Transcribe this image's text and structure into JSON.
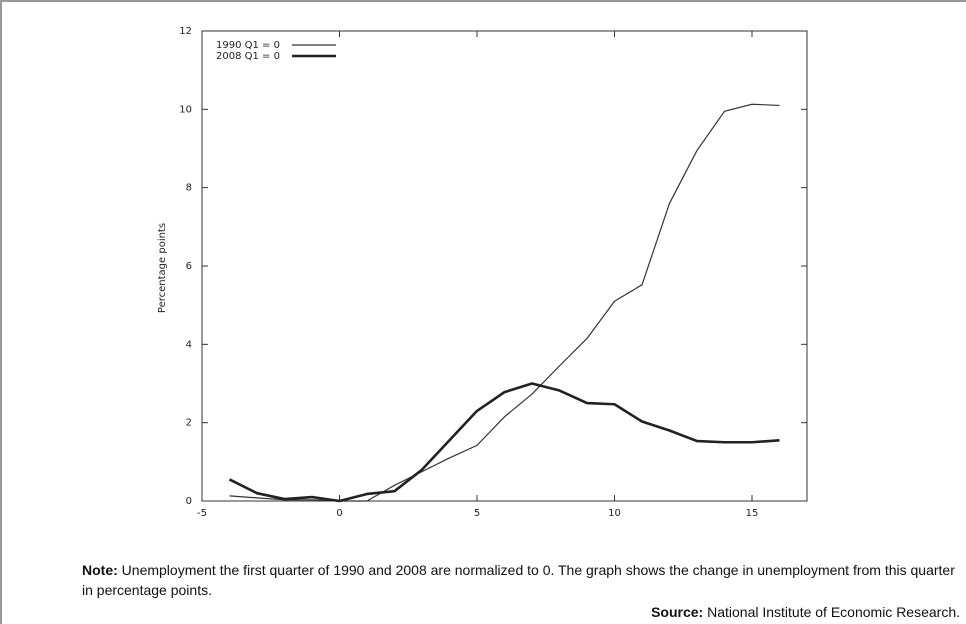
{
  "chart_data": {
    "type": "line",
    "ylabel": "Percentage points",
    "x": [
      -4,
      -3,
      -2,
      -1,
      0,
      1,
      2,
      3,
      4,
      5,
      6,
      7,
      8,
      9,
      10,
      11,
      12,
      13,
      14,
      15,
      16
    ],
    "series": [
      {
        "name": "1990 Q1 = 0",
        "color": "#333333",
        "line_width": 1.2,
        "values": [
          0.13,
          0.08,
          0.03,
          0.03,
          0,
          0,
          0.4,
          0.75,
          1.1,
          1.42,
          2.15,
          2.73,
          3.45,
          4.15,
          5.1,
          5.52,
          7.6,
          8.95,
          9.95,
          10.13,
          10.1
        ]
      },
      {
        "name": "2008 Q1 = 0",
        "color": "#222222",
        "line_width": 2.6,
        "values": [
          0.55,
          0.2,
          0.05,
          0.1,
          0,
          0.18,
          0.25,
          0.8,
          1.55,
          2.3,
          2.78,
          3.0,
          2.82,
          2.5,
          2.47,
          2.03,
          1.8,
          1.53,
          1.5,
          1.5,
          1.55
        ]
      }
    ],
    "xlim": [
      -5,
      17
    ],
    "ylim": [
      0,
      12
    ],
    "xticks": [
      -5,
      0,
      5,
      10,
      15
    ],
    "yticks": [
      0,
      2,
      4,
      6,
      8,
      10,
      12
    ],
    "grid": false,
    "legend": "top-left"
  },
  "note": {
    "label": "Note:",
    "text": "Unemployment the first quarter of 1990 and 2008 are normalized to 0. The graph shows the change in unemployment from this quarter in percentage points."
  },
  "source": {
    "label": "Source:",
    "text": "National Institute of Economic Research."
  }
}
